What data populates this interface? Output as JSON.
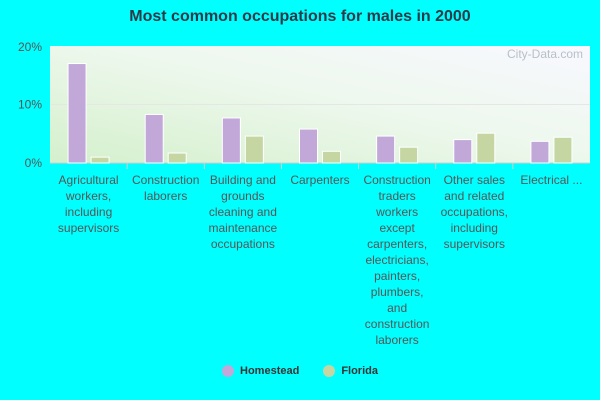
{
  "chart_data": {
    "type": "bar",
    "title": "Most common occupations for males in 2000",
    "categories": [
      "Agricultural workers, including supervisors",
      "Construction laborers",
      "Building and grounds cleaning and maintenance occupations",
      "Carpenters",
      "Construction traders workers except carpenters, electricians, painters, plumbers, and construction laborers",
      "Other sales and related occupations, including supervisors",
      "Electrical ..."
    ],
    "series": [
      {
        "name": "Homestead",
        "values": [
          17.0,
          8.3,
          7.7,
          5.8,
          4.6,
          4.0,
          3.7
        ]
      },
      {
        "name": "Florida",
        "values": [
          1.0,
          1.7,
          4.6,
          2.0,
          2.7,
          5.1,
          4.4
        ]
      }
    ],
    "y_ticks": [
      "0%",
      "10%",
      "20%"
    ],
    "ylim": [
      0,
      20
    ],
    "grid": true,
    "legend_position": "bottom",
    "colors": {
      "Homestead": "#c1a8d9",
      "Florida": "#c5d6a2",
      "background": "#00ffff"
    },
    "watermark": "City-Data.com"
  }
}
